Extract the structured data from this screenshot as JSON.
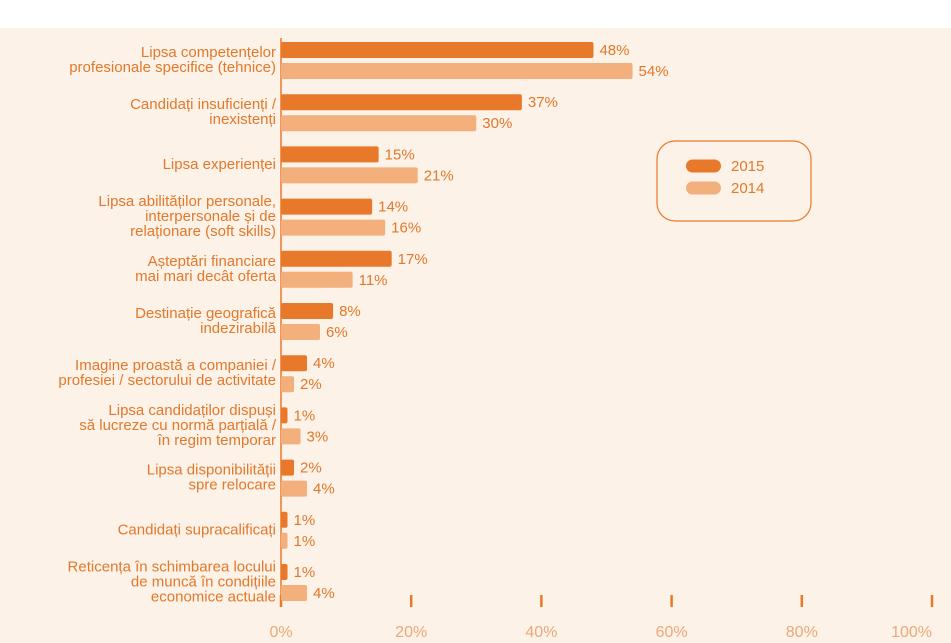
{
  "chart_data": {
    "type": "bar",
    "orientation": "horizontal",
    "categories": [
      [
        "Lipsa competențelor",
        "profesionale specifice (tehnice)"
      ],
      [
        "Candidați insuficienți /",
        "inexistenți"
      ],
      [
        "Lipsa experienței"
      ],
      [
        "Lipsa abilităților personale,",
        "interpersonale și de",
        "relaționare (soft skills)"
      ],
      [
        "Așteptări financiare",
        "mai mari decât oferta"
      ],
      [
        "Destinație geografică",
        "indezirabilă"
      ],
      [
        "Imagine proastă a companiei /",
        "profesiei / sectorului de activitate"
      ],
      [
        "Lipsa candidaților dispuși",
        "să lucreze cu normă parțială /",
        "în regim temporar"
      ],
      [
        "Lipsa disponibilității",
        "spre relocare"
      ],
      [
        "Candidați supracalificați"
      ],
      [
        "Reticența în schimbarea locului",
        "de muncă în condițiile",
        "economice actuale"
      ]
    ],
    "series": [
      {
        "name": "2015",
        "color": "#e8792b",
        "values": [
          48,
          37,
          15,
          14,
          17,
          8,
          4,
          1,
          2,
          1,
          1
        ],
        "value_labels": [
          "48%",
          "37%",
          "15%",
          "14%",
          "17%",
          "8%",
          "4%",
          "1%",
          "2%",
          "1%",
          "1%"
        ]
      },
      {
        "name": "2014",
        "color": "#f4b07c",
        "values": [
          54,
          30,
          21,
          16,
          11,
          6,
          2,
          3,
          4,
          1,
          4
        ],
        "value_labels": [
          "54%",
          "30%",
          "21%",
          "16%",
          "11%",
          "6%",
          "2%",
          "3%",
          "4%",
          "1%",
          "4%"
        ]
      }
    ],
    "xlim": [
      0,
      100
    ],
    "xticks": [
      {
        "value": 0,
        "label": "0%"
      },
      {
        "value": 20,
        "label": "20%"
      },
      {
        "value": 40,
        "label": "40%"
      },
      {
        "value": 60,
        "label": "60%"
      },
      {
        "value": 80,
        "label": "80%"
      },
      {
        "value": 100,
        "label": "100%"
      }
    ]
  }
}
